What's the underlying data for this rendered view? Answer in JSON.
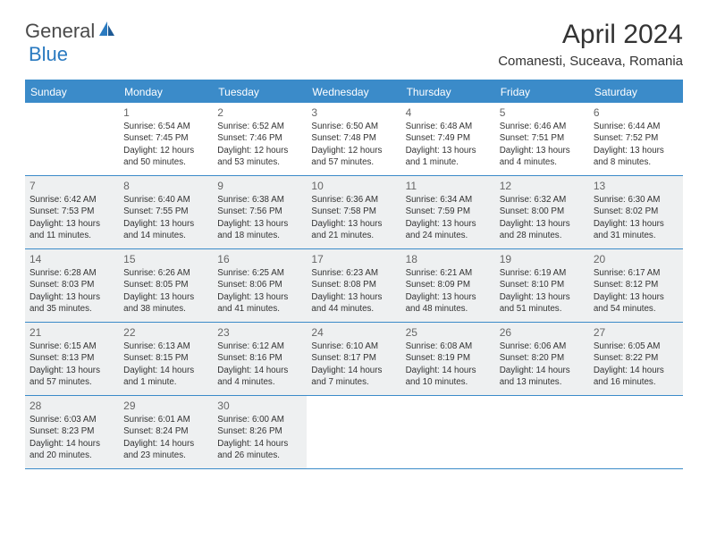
{
  "logo": {
    "general": "General",
    "blue": "Blue"
  },
  "title": "April 2024",
  "location": "Comanesti, Suceava, Romania",
  "colors": {
    "header_bar": "#3b8bc9",
    "shaded_cell": "#eef0f1",
    "text": "#333333",
    "daynum": "#666666",
    "logo_blue": "#2a7ac0"
  },
  "weekdays": [
    "Sunday",
    "Monday",
    "Tuesday",
    "Wednesday",
    "Thursday",
    "Friday",
    "Saturday"
  ],
  "weeks": [
    [
      {
        "num": "",
        "sunrise": "",
        "sunset": "",
        "daylight1": "",
        "daylight2": "",
        "shaded": false
      },
      {
        "num": "1",
        "sunrise": "Sunrise: 6:54 AM",
        "sunset": "Sunset: 7:45 PM",
        "daylight1": "Daylight: 12 hours",
        "daylight2": "and 50 minutes.",
        "shaded": false
      },
      {
        "num": "2",
        "sunrise": "Sunrise: 6:52 AM",
        "sunset": "Sunset: 7:46 PM",
        "daylight1": "Daylight: 12 hours",
        "daylight2": "and 53 minutes.",
        "shaded": false
      },
      {
        "num": "3",
        "sunrise": "Sunrise: 6:50 AM",
        "sunset": "Sunset: 7:48 PM",
        "daylight1": "Daylight: 12 hours",
        "daylight2": "and 57 minutes.",
        "shaded": false
      },
      {
        "num": "4",
        "sunrise": "Sunrise: 6:48 AM",
        "sunset": "Sunset: 7:49 PM",
        "daylight1": "Daylight: 13 hours",
        "daylight2": "and 1 minute.",
        "shaded": false
      },
      {
        "num": "5",
        "sunrise": "Sunrise: 6:46 AM",
        "sunset": "Sunset: 7:51 PM",
        "daylight1": "Daylight: 13 hours",
        "daylight2": "and 4 minutes.",
        "shaded": false
      },
      {
        "num": "6",
        "sunrise": "Sunrise: 6:44 AM",
        "sunset": "Sunset: 7:52 PM",
        "daylight1": "Daylight: 13 hours",
        "daylight2": "and 8 minutes.",
        "shaded": false
      }
    ],
    [
      {
        "num": "7",
        "sunrise": "Sunrise: 6:42 AM",
        "sunset": "Sunset: 7:53 PM",
        "daylight1": "Daylight: 13 hours",
        "daylight2": "and 11 minutes.",
        "shaded": true
      },
      {
        "num": "8",
        "sunrise": "Sunrise: 6:40 AM",
        "sunset": "Sunset: 7:55 PM",
        "daylight1": "Daylight: 13 hours",
        "daylight2": "and 14 minutes.",
        "shaded": true
      },
      {
        "num": "9",
        "sunrise": "Sunrise: 6:38 AM",
        "sunset": "Sunset: 7:56 PM",
        "daylight1": "Daylight: 13 hours",
        "daylight2": "and 18 minutes.",
        "shaded": true
      },
      {
        "num": "10",
        "sunrise": "Sunrise: 6:36 AM",
        "sunset": "Sunset: 7:58 PM",
        "daylight1": "Daylight: 13 hours",
        "daylight2": "and 21 minutes.",
        "shaded": true
      },
      {
        "num": "11",
        "sunrise": "Sunrise: 6:34 AM",
        "sunset": "Sunset: 7:59 PM",
        "daylight1": "Daylight: 13 hours",
        "daylight2": "and 24 minutes.",
        "shaded": true
      },
      {
        "num": "12",
        "sunrise": "Sunrise: 6:32 AM",
        "sunset": "Sunset: 8:00 PM",
        "daylight1": "Daylight: 13 hours",
        "daylight2": "and 28 minutes.",
        "shaded": true
      },
      {
        "num": "13",
        "sunrise": "Sunrise: 6:30 AM",
        "sunset": "Sunset: 8:02 PM",
        "daylight1": "Daylight: 13 hours",
        "daylight2": "and 31 minutes.",
        "shaded": true
      }
    ],
    [
      {
        "num": "14",
        "sunrise": "Sunrise: 6:28 AM",
        "sunset": "Sunset: 8:03 PM",
        "daylight1": "Daylight: 13 hours",
        "daylight2": "and 35 minutes.",
        "shaded": true
      },
      {
        "num": "15",
        "sunrise": "Sunrise: 6:26 AM",
        "sunset": "Sunset: 8:05 PM",
        "daylight1": "Daylight: 13 hours",
        "daylight2": "and 38 minutes.",
        "shaded": true
      },
      {
        "num": "16",
        "sunrise": "Sunrise: 6:25 AM",
        "sunset": "Sunset: 8:06 PM",
        "daylight1": "Daylight: 13 hours",
        "daylight2": "and 41 minutes.",
        "shaded": true
      },
      {
        "num": "17",
        "sunrise": "Sunrise: 6:23 AM",
        "sunset": "Sunset: 8:08 PM",
        "daylight1": "Daylight: 13 hours",
        "daylight2": "and 44 minutes.",
        "shaded": true
      },
      {
        "num": "18",
        "sunrise": "Sunrise: 6:21 AM",
        "sunset": "Sunset: 8:09 PM",
        "daylight1": "Daylight: 13 hours",
        "daylight2": "and 48 minutes.",
        "shaded": true
      },
      {
        "num": "19",
        "sunrise": "Sunrise: 6:19 AM",
        "sunset": "Sunset: 8:10 PM",
        "daylight1": "Daylight: 13 hours",
        "daylight2": "and 51 minutes.",
        "shaded": true
      },
      {
        "num": "20",
        "sunrise": "Sunrise: 6:17 AM",
        "sunset": "Sunset: 8:12 PM",
        "daylight1": "Daylight: 13 hours",
        "daylight2": "and 54 minutes.",
        "shaded": true
      }
    ],
    [
      {
        "num": "21",
        "sunrise": "Sunrise: 6:15 AM",
        "sunset": "Sunset: 8:13 PM",
        "daylight1": "Daylight: 13 hours",
        "daylight2": "and 57 minutes.",
        "shaded": true
      },
      {
        "num": "22",
        "sunrise": "Sunrise: 6:13 AM",
        "sunset": "Sunset: 8:15 PM",
        "daylight1": "Daylight: 14 hours",
        "daylight2": "and 1 minute.",
        "shaded": true
      },
      {
        "num": "23",
        "sunrise": "Sunrise: 6:12 AM",
        "sunset": "Sunset: 8:16 PM",
        "daylight1": "Daylight: 14 hours",
        "daylight2": "and 4 minutes.",
        "shaded": true
      },
      {
        "num": "24",
        "sunrise": "Sunrise: 6:10 AM",
        "sunset": "Sunset: 8:17 PM",
        "daylight1": "Daylight: 14 hours",
        "daylight2": "and 7 minutes.",
        "shaded": true
      },
      {
        "num": "25",
        "sunrise": "Sunrise: 6:08 AM",
        "sunset": "Sunset: 8:19 PM",
        "daylight1": "Daylight: 14 hours",
        "daylight2": "and 10 minutes.",
        "shaded": true
      },
      {
        "num": "26",
        "sunrise": "Sunrise: 6:06 AM",
        "sunset": "Sunset: 8:20 PM",
        "daylight1": "Daylight: 14 hours",
        "daylight2": "and 13 minutes.",
        "shaded": true
      },
      {
        "num": "27",
        "sunrise": "Sunrise: 6:05 AM",
        "sunset": "Sunset: 8:22 PM",
        "daylight1": "Daylight: 14 hours",
        "daylight2": "and 16 minutes.",
        "shaded": true
      }
    ],
    [
      {
        "num": "28",
        "sunrise": "Sunrise: 6:03 AM",
        "sunset": "Sunset: 8:23 PM",
        "daylight1": "Daylight: 14 hours",
        "daylight2": "and 20 minutes.",
        "shaded": true
      },
      {
        "num": "29",
        "sunrise": "Sunrise: 6:01 AM",
        "sunset": "Sunset: 8:24 PM",
        "daylight1": "Daylight: 14 hours",
        "daylight2": "and 23 minutes.",
        "shaded": true
      },
      {
        "num": "30",
        "sunrise": "Sunrise: 6:00 AM",
        "sunset": "Sunset: 8:26 PM",
        "daylight1": "Daylight: 14 hours",
        "daylight2": "and 26 minutes.",
        "shaded": true
      },
      {
        "num": "",
        "sunrise": "",
        "sunset": "",
        "daylight1": "",
        "daylight2": "",
        "shaded": false
      },
      {
        "num": "",
        "sunrise": "",
        "sunset": "",
        "daylight1": "",
        "daylight2": "",
        "shaded": false
      },
      {
        "num": "",
        "sunrise": "",
        "sunset": "",
        "daylight1": "",
        "daylight2": "",
        "shaded": false
      },
      {
        "num": "",
        "sunrise": "",
        "sunset": "",
        "daylight1": "",
        "daylight2": "",
        "shaded": false
      }
    ]
  ]
}
